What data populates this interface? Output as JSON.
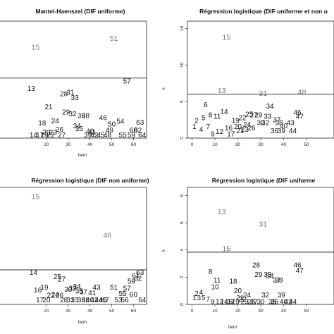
{
  "colors": {
    "point": "#111111",
    "flagged": "#777777",
    "axis": "#222222"
  },
  "chart_data": [
    {
      "type": "scatter",
      "title": "Mantel-Haenszel (DIF uniforme)",
      "xlabel": "Item",
      "ylabel": "",
      "xlim": [
        -2,
        66
      ],
      "ylim": [
        0,
        23
      ],
      "xticks": [
        20,
        30,
        40,
        50,
        60
      ],
      "yticks": [],
      "threshold": 11.8,
      "points": [
        {
          "label": "15",
          "x": 15,
          "y": 17.9
        },
        {
          "label": "51",
          "x": 51,
          "y": 19.6
        },
        {
          "label": "57",
          "x": 57,
          "y": 11.2
        },
        {
          "label": "13",
          "x": 13,
          "y": 9.8
        },
        {
          "label": "28",
          "x": 28,
          "y": 8.7
        },
        {
          "label": "31",
          "x": 31,
          "y": 9.0
        },
        {
          "label": "33",
          "x": 33,
          "y": 8.0
        },
        {
          "label": "21",
          "x": 21,
          "y": 6.2
        },
        {
          "label": "29",
          "x": 29,
          "y": 5.1
        },
        {
          "label": "32",
          "x": 32,
          "y": 4.8
        },
        {
          "label": "36",
          "x": 36,
          "y": 4.4
        },
        {
          "label": "38",
          "x": 38,
          "y": 4.4
        },
        {
          "label": "46",
          "x": 46,
          "y": 4.0
        },
        {
          "label": "18",
          "x": 18,
          "y": 3.0
        },
        {
          "label": "24",
          "x": 24,
          "y": 3.4
        },
        {
          "label": "34",
          "x": 34,
          "y": 2.4
        },
        {
          "label": "54",
          "x": 54,
          "y": 3.3
        },
        {
          "label": "63",
          "x": 63,
          "y": 3.1
        },
        {
          "label": "50",
          "x": 50,
          "y": 2.8
        },
        {
          "label": "26",
          "x": 26,
          "y": 1.7
        },
        {
          "label": "35",
          "x": 35,
          "y": 1.9
        },
        {
          "label": "49",
          "x": 49,
          "y": 1.6
        },
        {
          "label": "60",
          "x": 60,
          "y": 1.6
        },
        {
          "label": "62",
          "x": 62,
          "y": 1.6
        },
        {
          "label": "20",
          "x": 20,
          "y": 1.2
        },
        {
          "label": "23",
          "x": 23,
          "y": 1.2
        },
        {
          "label": "40",
          "x": 40,
          "y": 1.4
        },
        {
          "label": "41",
          "x": 41,
          "y": 1.2
        },
        {
          "label": "14",
          "x": 14,
          "y": 0.6
        },
        {
          "label": "17",
          "x": 17,
          "y": 0.6
        },
        {
          "label": "19",
          "x": 19,
          "y": 0.6
        },
        {
          "label": "22",
          "x": 22,
          "y": 0.6
        },
        {
          "label": "27",
          "x": 27,
          "y": 0.6
        },
        {
          "label": "39",
          "x": 39,
          "y": 0.6
        },
        {
          "label": "42",
          "x": 42,
          "y": 0.6
        },
        {
          "label": "45",
          "x": 45,
          "y": 0.6
        },
        {
          "label": "48",
          "x": 48,
          "y": 0.6
        },
        {
          "label": "55",
          "x": 55,
          "y": 0.6
        },
        {
          "label": "59",
          "x": 59,
          "y": 0.6
        },
        {
          "label": "64",
          "x": 64,
          "y": 0.6
        }
      ]
    },
    {
      "type": "scatter",
      "title": "Régression logistique (DIF uniforme et non u",
      "xlabel": "",
      "ylabel": "λ",
      "xlim": [
        -2,
        62
      ],
      "ylim": [
        0,
        16
      ],
      "xticks": [
        0,
        10,
        20,
        30,
        40,
        50
      ],
      "yticks": [
        0,
        5,
        10,
        15
      ],
      "threshold": 5.99,
      "points": [
        {
          "label": "15",
          "x": 15,
          "y": 13.8
        },
        {
          "label": "13",
          "x": 13,
          "y": 6.5
        },
        {
          "label": "31",
          "x": 31,
          "y": 6.1
        },
        {
          "label": "48",
          "x": 48,
          "y": 6.3
        },
        {
          "label": "6",
          "x": 6,
          "y": 4.6
        },
        {
          "label": "14",
          "x": 14,
          "y": 3.6
        },
        {
          "label": "34",
          "x": 34,
          "y": 4.4
        },
        {
          "label": "46",
          "x": 46,
          "y": 3.5
        },
        {
          "label": "5",
          "x": 5,
          "y": 2.8
        },
        {
          "label": "8",
          "x": 8,
          "y": 3.2
        },
        {
          "label": "11",
          "x": 11,
          "y": 3.0
        },
        {
          "label": "25",
          "x": 25,
          "y": 3.3
        },
        {
          "label": "27",
          "x": 27,
          "y": 3.2
        },
        {
          "label": "29",
          "x": 29,
          "y": 3.2
        },
        {
          "label": "33",
          "x": 33,
          "y": 3.0
        },
        {
          "label": "47",
          "x": 47,
          "y": 3.0
        },
        {
          "label": "2",
          "x": 2,
          "y": 2.4
        },
        {
          "label": "19",
          "x": 19,
          "y": 2.4
        },
        {
          "label": "22",
          "x": 22,
          "y": 2.8
        },
        {
          "label": "37",
          "x": 37,
          "y": 2.5
        },
        {
          "label": "1",
          "x": 1,
          "y": 1.6
        },
        {
          "label": "7",
          "x": 7,
          "y": 1.6
        },
        {
          "label": "12",
          "x": 12,
          "y": 0.9
        },
        {
          "label": "16",
          "x": 16,
          "y": 1.4
        },
        {
          "label": "20",
          "x": 20,
          "y": 1.6
        },
        {
          "label": "24",
          "x": 24,
          "y": 1.9
        },
        {
          "label": "30",
          "x": 30,
          "y": 2.1
        },
        {
          "label": "32",
          "x": 32,
          "y": 2.1
        },
        {
          "label": "38",
          "x": 38,
          "y": 2.1
        },
        {
          "label": "40",
          "x": 40,
          "y": 1.7
        },
        {
          "label": "43",
          "x": 43,
          "y": 2.1
        },
        {
          "label": "4",
          "x": 4,
          "y": 1.2
        },
        {
          "label": "9",
          "x": 9,
          "y": 0.6
        },
        {
          "label": "17",
          "x": 17,
          "y": 0.6
        },
        {
          "label": "21",
          "x": 21,
          "y": 1.0
        },
        {
          "label": "23",
          "x": 23,
          "y": 1.2
        },
        {
          "label": "26",
          "x": 26,
          "y": 1.4
        },
        {
          "label": "36",
          "x": 36,
          "y": 1.0
        },
        {
          "label": "39",
          "x": 39,
          "y": 1.0
        },
        {
          "label": "44",
          "x": 44,
          "y": 1.0
        }
      ]
    },
    {
      "type": "scatter",
      "title": "Régression logistique (DIF non uniforme)",
      "xlabel": "Item",
      "ylabel": "",
      "xlim": [
        -2,
        66
      ],
      "ylim": [
        0,
        13
      ],
      "xticks": [
        20,
        30,
        40,
        50,
        60
      ],
      "yticks": [],
      "threshold": 3.84,
      "points": [
        {
          "label": "15",
          "x": 15,
          "y": 12.0
        },
        {
          "label": "48",
          "x": 48,
          "y": 7.7
        },
        {
          "label": "14",
          "x": 14,
          "y": 3.55
        },
        {
          "label": "63",
          "x": 63,
          "y": 3.55
        },
        {
          "label": "61",
          "x": 61,
          "y": 3.2
        },
        {
          "label": "25",
          "x": 25,
          "y": 3.1
        },
        {
          "label": "62",
          "x": 62,
          "y": 2.9
        },
        {
          "label": "27",
          "x": 27,
          "y": 2.8
        },
        {
          "label": "59",
          "x": 59,
          "y": 2.6
        },
        {
          "label": "34",
          "x": 34,
          "y": 2.0
        },
        {
          "label": "19",
          "x": 19,
          "y": 1.9
        },
        {
          "label": "43",
          "x": 43,
          "y": 1.9
        },
        {
          "label": "51",
          "x": 51,
          "y": 1.9
        },
        {
          "label": "57",
          "x": 57,
          "y": 1.8
        },
        {
          "label": "16",
          "x": 16,
          "y": 1.6
        },
        {
          "label": "30",
          "x": 30,
          "y": 1.7
        },
        {
          "label": "32",
          "x": 32,
          "y": 1.8
        },
        {
          "label": "35",
          "x": 35,
          "y": 1.5
        },
        {
          "label": "37",
          "x": 37,
          "y": 1.4
        },
        {
          "label": "41",
          "x": 41,
          "y": 1.3
        },
        {
          "label": "22",
          "x": 22,
          "y": 1.0
        },
        {
          "label": "24",
          "x": 24,
          "y": 1.1
        },
        {
          "label": "26",
          "x": 26,
          "y": 1.0
        },
        {
          "label": "55",
          "x": 55,
          "y": 1.2
        },
        {
          "label": "60",
          "x": 60,
          "y": 1.1
        },
        {
          "label": "17",
          "x": 17,
          "y": 0.5
        },
        {
          "label": "20",
          "x": 20,
          "y": 0.5
        },
        {
          "label": "28",
          "x": 28,
          "y": 0.5
        },
        {
          "label": "31",
          "x": 31,
          "y": 0.5
        },
        {
          "label": "33",
          "x": 33,
          "y": 0.5
        },
        {
          "label": "36",
          "x": 36,
          "y": 0.5
        },
        {
          "label": "38",
          "x": 38,
          "y": 0.5
        },
        {
          "label": "40",
          "x": 40,
          "y": 0.5
        },
        {
          "label": "42",
          "x": 42,
          "y": 0.5
        },
        {
          "label": "44",
          "x": 44,
          "y": 0.5
        },
        {
          "label": "46",
          "x": 46,
          "y": 0.5
        },
        {
          "label": "47",
          "x": 47,
          "y": 0.5
        },
        {
          "label": "53",
          "x": 53,
          "y": 0.5
        },
        {
          "label": "56",
          "x": 56,
          "y": 0.5
        },
        {
          "label": "64",
          "x": 64,
          "y": 0.5
        }
      ]
    },
    {
      "type": "scatter",
      "title": "Régression logistique (DIF uniforme",
      "xlabel": "Item",
      "ylabel": "λ",
      "xlim": [
        -2,
        62
      ],
      "ylim": [
        0,
        8.6
      ],
      "xticks": [
        0,
        10,
        20,
        30,
        40,
        50
      ],
      "yticks": [
        0,
        2,
        4,
        6,
        8
      ],
      "threshold": 3.84,
      "points": [
        {
          "label": "13",
          "x": 13,
          "y": 6.8
        },
        {
          "label": "31",
          "x": 31,
          "y": 5.9
        },
        {
          "label": "15",
          "x": 15,
          "y": 4.1
        },
        {
          "label": "28",
          "x": 28,
          "y": 2.9
        },
        {
          "label": "46",
          "x": 46,
          "y": 2.9
        },
        {
          "label": "47",
          "x": 47,
          "y": 2.5
        },
        {
          "label": "8",
          "x": 8,
          "y": 2.4
        },
        {
          "label": "29",
          "x": 29,
          "y": 2.2
        },
        {
          "label": "33",
          "x": 33,
          "y": 2.2
        },
        {
          "label": "34",
          "x": 34,
          "y": 2.1
        },
        {
          "label": "11",
          "x": 11,
          "y": 1.8
        },
        {
          "label": "37",
          "x": 37,
          "y": 1.8
        },
        {
          "label": "38",
          "x": 38,
          "y": 1.8
        },
        {
          "label": "18",
          "x": 18,
          "y": 1.7
        },
        {
          "label": "10",
          "x": 10,
          "y": 1.3
        },
        {
          "label": "20",
          "x": 20,
          "y": 1.0
        },
        {
          "label": "2",
          "x": 2,
          "y": 0.8
        },
        {
          "label": "4",
          "x": 4,
          "y": 0.9
        },
        {
          "label": "24",
          "x": 24,
          "y": 0.7
        },
        {
          "label": "32",
          "x": 32,
          "y": 0.7
        },
        {
          "label": "39",
          "x": 39,
          "y": 0.7
        },
        {
          "label": "1",
          "x": 1,
          "y": 0.5
        },
        {
          "label": "3",
          "x": 3,
          "y": 0.5
        },
        {
          "label": "5",
          "x": 5,
          "y": 0.5
        },
        {
          "label": "7",
          "x": 7,
          "y": 0.4
        },
        {
          "label": "21",
          "x": 21,
          "y": 0.5
        },
        {
          "label": "22",
          "x": 22,
          "y": 0.4
        },
        {
          "label": "9",
          "x": 9,
          "y": 0.2
        },
        {
          "label": "12",
          "x": 12,
          "y": 0.2
        },
        {
          "label": "14",
          "x": 14,
          "y": 0.2
        },
        {
          "label": "16",
          "x": 16,
          "y": 0.2
        },
        {
          "label": "17",
          "x": 17,
          "y": 0.2
        },
        {
          "label": "19",
          "x": 19,
          "y": 0.2
        },
        {
          "label": "23",
          "x": 23,
          "y": 0.2
        },
        {
          "label": "26",
          "x": 26,
          "y": 0.2
        },
        {
          "label": "27",
          "x": 27,
          "y": 0.2
        },
        {
          "label": "30",
          "x": 30,
          "y": 0.2
        },
        {
          "label": "35",
          "x": 35,
          "y": 0.2
        },
        {
          "label": "36",
          "x": 36,
          "y": 0.2
        },
        {
          "label": "40",
          "x": 40,
          "y": 0.2
        },
        {
          "label": "42",
          "x": 42,
          "y": 0.2
        },
        {
          "label": "44",
          "x": 44,
          "y": 0.2
        }
      ]
    }
  ]
}
